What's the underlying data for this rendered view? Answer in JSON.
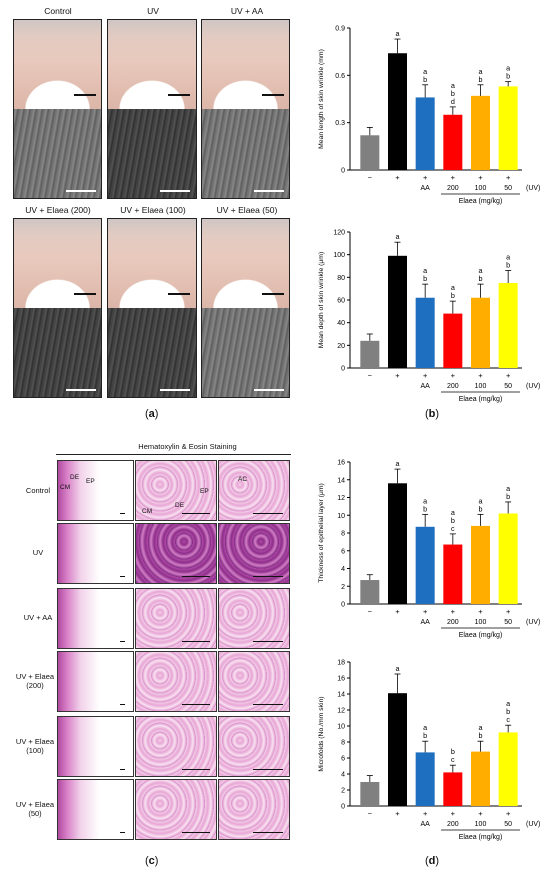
{
  "panel_a": {
    "letter": "a",
    "titles": [
      "Control",
      "UV",
      "UV + AA",
      "UV + Elaea (200)",
      "UV + Elaea (100)",
      "UV + Elaea (50)"
    ]
  },
  "panel_c": {
    "letter": "c",
    "header": "Hematoxylin & Eosin Staining",
    "rows": [
      "Control",
      "UV",
      "UV + AA",
      "UV + Elaea (200)",
      "UV + Elaea (100)",
      "UV + Elaea (50)"
    ],
    "annotations": {
      "cm": "CM",
      "de": "DE",
      "ep": "EP",
      "ac": "AC"
    }
  },
  "panel_b": {
    "letter": "b"
  },
  "panel_d": {
    "letter": "d"
  },
  "colors": {
    "control": "#808080",
    "uv": "#000000",
    "aa": "#1f6fc0",
    "e200": "#ff0000",
    "e100": "#ffae00",
    "e50": "#ffff00"
  },
  "chart_data": [
    {
      "type": "bar",
      "panel": "b-top",
      "ylabel": "Mean length of skin wrinkle (mm)",
      "ylim": [
        0,
        0.9
      ],
      "yticks": [
        0,
        0.3,
        0.6,
        0.9
      ],
      "ytick_labels": [
        "0",
        "0.3",
        "0.6",
        "0.9"
      ],
      "categories": [
        "−",
        "+",
        "+ AA",
        "+ 200",
        "+ 100",
        "+ 50"
      ],
      "values": [
        0.22,
        0.74,
        0.46,
        0.35,
        0.47,
        0.53
      ],
      "errors": [
        0.05,
        0.09,
        0.08,
        0.05,
        0.07,
        0.03
      ],
      "letters": [
        [],
        [
          "a"
        ],
        [
          "a",
          "b"
        ],
        [
          "a",
          "b",
          "d"
        ],
        [
          "a",
          "b"
        ],
        [
          "a",
          "b"
        ]
      ],
      "xrow1": [
        "−",
        "+",
        "+",
        "+",
        "+",
        "+"
      ],
      "xrow2": [
        "",
        "",
        "AA",
        "200",
        "100",
        "50"
      ],
      "uv_label": "(UV)",
      "group_label": "Elaea (mg/kg)"
    },
    {
      "type": "bar",
      "panel": "b-bottom",
      "ylabel": "Mean depth of skin wrinkle (μm)",
      "ylim": [
        0,
        120
      ],
      "yticks": [
        0,
        20,
        40,
        60,
        80,
        100,
        120
      ],
      "ytick_labels": [
        "0",
        "20",
        "40",
        "60",
        "80",
        "100",
        "120"
      ],
      "categories": [
        "−",
        "+",
        "+ AA",
        "+ 200",
        "+ 100",
        "+ 50"
      ],
      "values": [
        24,
        99,
        62,
        48,
        62,
        75
      ],
      "errors": [
        6,
        12,
        12,
        11,
        12,
        11
      ],
      "letters": [
        [],
        [
          "a"
        ],
        [
          "a",
          "b"
        ],
        [
          "a",
          "b"
        ],
        [
          "a",
          "b"
        ],
        [
          "a",
          "b"
        ]
      ],
      "xrow1": [
        "−",
        "+",
        "+",
        "+",
        "+",
        "+"
      ],
      "xrow2": [
        "",
        "",
        "AA",
        "200",
        "100",
        "50"
      ],
      "uv_label": "(UV)",
      "group_label": "Elaea (mg/kg)"
    },
    {
      "type": "bar",
      "panel": "d-top",
      "ylabel": "Thickness of epithelial layer (μm)",
      "ylim": [
        0,
        16
      ],
      "yticks": [
        0,
        2,
        4,
        6,
        8,
        10,
        12,
        14,
        16
      ],
      "ytick_labels": [
        "0",
        "2",
        "4",
        "6",
        "8",
        "10",
        "12",
        "14",
        "16"
      ],
      "categories": [
        "−",
        "+",
        "+ AA",
        "+ 200",
        "+ 100",
        "+ 50"
      ],
      "values": [
        2.7,
        13.6,
        8.7,
        6.7,
        8.8,
        10.2
      ],
      "errors": [
        0.6,
        1.6,
        1.4,
        1.2,
        1.3,
        1.3
      ],
      "letters": [
        [],
        [
          "a"
        ],
        [
          "a",
          "b"
        ],
        [
          "a",
          "b",
          "c"
        ],
        [
          "a",
          "b"
        ],
        [
          "a",
          "b"
        ]
      ],
      "xrow1": [
        "−",
        "+",
        "+",
        "+",
        "+",
        "+"
      ],
      "xrow2": [
        "",
        "",
        "AA",
        "200",
        "100",
        "50"
      ],
      "uv_label": "(UV)",
      "group_label": "Elaea (mg/kg)"
    },
    {
      "type": "bar",
      "panel": "d-bottom",
      "ylabel": "Microfolds (No./mm skin)",
      "ylim": [
        0,
        18
      ],
      "yticks": [
        0,
        2,
        4,
        6,
        8,
        10,
        12,
        14,
        16,
        18
      ],
      "ytick_labels": [
        "0",
        "2",
        "4",
        "6",
        "8",
        "10",
        "12",
        "14",
        "16",
        "18"
      ],
      "categories": [
        "−",
        "+",
        "+ AA",
        "+ 200",
        "+ 100",
        "+ 50"
      ],
      "values": [
        3.0,
        14.1,
        6.7,
        4.2,
        6.8,
        9.2
      ],
      "errors": [
        0.8,
        2.4,
        1.4,
        0.9,
        1.3,
        0.9
      ],
      "letters": [
        [],
        [
          "a"
        ],
        [
          "a",
          "b"
        ],
        [
          "b",
          "c"
        ],
        [
          "a",
          "b"
        ],
        [
          "a",
          "b",
          "c"
        ]
      ],
      "xrow1": [
        "−",
        "+",
        "+",
        "+",
        "+",
        "+"
      ],
      "xrow2": [
        "",
        "",
        "AA",
        "200",
        "100",
        "50"
      ],
      "uv_label": "(UV)",
      "group_label": "Elaea (mg/kg)"
    }
  ]
}
